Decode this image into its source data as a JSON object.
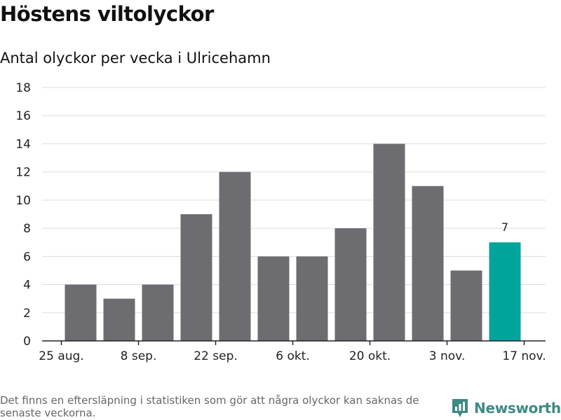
{
  "title": "Höstens viltolyckor",
  "subtitle": "Antal olyckor per vecka i Ulricehamn",
  "footnote": "Det finns en eftersläpning i statistiken som gör att några olyckor kan saknas de senaste veckorna.",
  "brand": {
    "name": "Newsworthy",
    "icon": "newsworthy-logo-icon"
  },
  "colors": {
    "bar": "#6d6c71",
    "highlight": "#00a49a",
    "grid": "#dddddd",
    "axis": "#222222",
    "brand": "#3d8a84"
  },
  "chart_data": {
    "type": "bar",
    "title": "Höstens viltolyckor",
    "subtitle": "Antal olyckor per vecka i Ulricehamn",
    "xlabel": "",
    "ylabel": "",
    "ylim": [
      0,
      18
    ],
    "yticks": [
      0,
      2,
      4,
      6,
      8,
      10,
      12,
      14,
      16,
      18
    ],
    "x_tick_labels": [
      "25 aug.",
      "8 sep.",
      "22 sep.",
      "6 okt.",
      "20 okt.",
      "3 nov.",
      "17 nov."
    ],
    "values": [
      4,
      3,
      4,
      9,
      12,
      6,
      6,
      8,
      14,
      11,
      5,
      7
    ],
    "highlight_index": 11,
    "data_labels": [
      {
        "index": 11,
        "text": "7"
      }
    ],
    "grid": true
  }
}
